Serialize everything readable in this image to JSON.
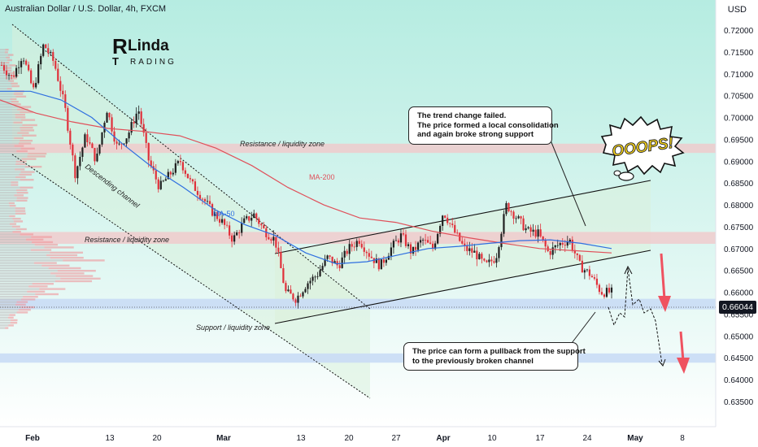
{
  "header": {
    "title": "Australian Dollar / U.S. Dollar, 4h, FXCM",
    "currency": "USD"
  },
  "logo": {
    "part1": "R",
    "part2": "Linda",
    "part3": "T",
    "part4": "RADING"
  },
  "current_price": "0.66044",
  "callouts": [
    {
      "lines": [
        "The trend change failed.",
        "The price formed a local consolidation",
        "and again broke strong support"
      ]
    },
    {
      "lines": [
        "The price can form a pullback from the support",
        "to the previously broken channel"
      ]
    }
  ],
  "annotations": {
    "resistance_upper": "Resistance / liquidity zone",
    "resistance_lower": "Resistance / liquidity zone",
    "support": "Support / liquidity zone",
    "descending_channel": "Descending channel",
    "ma200": "MA-200",
    "ma50": "MA-50",
    "ooops": "OOOPS!"
  },
  "colors": {
    "bull": "#1f1f1f",
    "bear": "#e0303a",
    "ma50": "#2f6fe0",
    "ma200": "#e0505a",
    "resistance_zone": "#f3c6c8",
    "support_zone": "#c9dcf5",
    "arrow": "#ef5260",
    "teal_gradient_top": "#bfeee4"
  },
  "chart_data": {
    "type": "candlestick",
    "title": "Australian Dollar / U.S. Dollar, 4h, FXCM",
    "ylabel": "USD",
    "y_range": [
      0.6335,
      0.7245
    ],
    "y_ticks": [
      "0.72000",
      "0.71500",
      "0.71000",
      "0.70500",
      "0.70000",
      "0.69500",
      "0.69000",
      "0.68500",
      "0.68000",
      "0.67500",
      "0.67000",
      "0.66500",
      "0.66000",
      "0.65500",
      "0.65000",
      "0.64500",
      "0.64000",
      "0.63500"
    ],
    "x_ticks": [
      "Feb",
      "13",
      "20",
      "Mar",
      "13",
      "20",
      "27",
      "Apr",
      "10",
      "17",
      "24",
      "May",
      "8"
    ],
    "zones": [
      {
        "label": "Resistance / liquidity zone",
        "from": 0.693,
        "to": 0.694
      },
      {
        "label": "Resistance / liquidity zone",
        "from": 0.6722,
        "to": 0.6738
      },
      {
        "label": "Support / liquidity zone",
        "from": 0.6572,
        "to": 0.6585
      },
      {
        "from": 0.645,
        "to": 0.646
      }
    ],
    "price_path": [
      0.712,
      0.709,
      0.7145,
      0.706,
      0.7168,
      0.7125,
      0.7025,
      0.687,
      0.696,
      0.69,
      0.702,
      0.693,
      0.696,
      0.702,
      0.69,
      0.684,
      0.687,
      0.69,
      0.685,
      0.682,
      0.6785,
      0.676,
      0.672,
      0.676,
      0.6778,
      0.674,
      0.672,
      0.66,
      0.6585,
      0.662,
      0.664,
      0.668,
      0.666,
      0.67,
      0.672,
      0.6685,
      0.666,
      0.67,
      0.673,
      0.669,
      0.672,
      0.67,
      0.6785,
      0.674,
      0.67,
      0.669,
      0.666,
      0.668,
      0.68,
      0.677,
      0.674,
      0.6735,
      0.669,
      0.671,
      0.672,
      0.666,
      0.664,
      0.66,
      0.66
    ],
    "series": [
      {
        "name": "MA-50",
        "values": [
          0.706,
          0.706,
          0.704,
          0.7,
          0.694,
          0.6885,
          0.684,
          0.679,
          0.6755,
          0.673,
          0.669,
          0.6665,
          0.667,
          0.6685,
          0.67,
          0.6705,
          0.6712,
          0.6718,
          0.672,
          0.6712,
          0.67
        ]
      },
      {
        "name": "MA-200",
        "values": [
          0.704,
          0.701,
          0.699,
          0.6975,
          0.6968,
          0.6958,
          0.693,
          0.689,
          0.684,
          0.68,
          0.677,
          0.676,
          0.674,
          0.6725,
          0.6712,
          0.67,
          0.6695,
          0.669
        ]
      }
    ]
  }
}
